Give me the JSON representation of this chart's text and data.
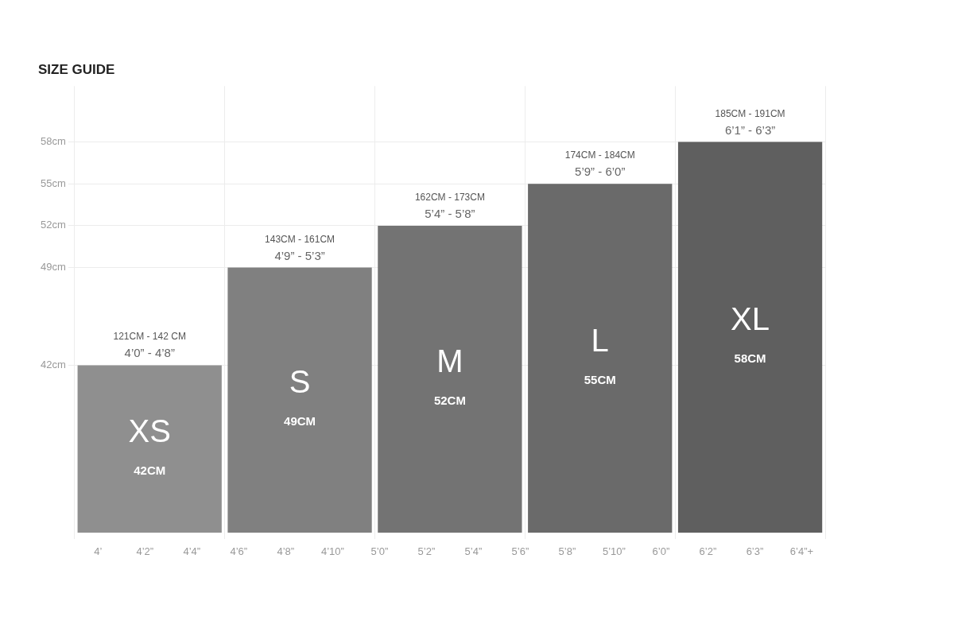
{
  "chart_data": {
    "type": "bar",
    "title": "SIZE GUIDE",
    "categories": [
      "XS",
      "S",
      "M",
      "L",
      "XL"
    ],
    "values": [
      42,
      49,
      52,
      55,
      58
    ],
    "colors": [
      "#8f8f8f",
      "#808080",
      "#737373",
      "#6a6a6a",
      "#5f5f5f"
    ],
    "value_labels": [
      "42CM",
      "49CM",
      "52CM",
      "55CM",
      "58CM"
    ],
    "ylim": [
      30,
      62
    ],
    "yticks": [
      {
        "value": 42,
        "label": "42cm"
      },
      {
        "value": 49,
        "label": "49cm"
      },
      {
        "value": 52,
        "label": "52cm"
      },
      {
        "value": 55,
        "label": "55cm"
      },
      {
        "value": 58,
        "label": "58cm"
      }
    ],
    "grid": true,
    "legend": false,
    "annotations": [
      "121CM - 142 CM",
      "4’0” - 4’8”",
      "143CM - 161CM",
      "4’9” - 5’3”",
      "162CM - 173CM",
      "5’4” - 5’8”",
      "174CM - 184CM",
      "5’9” - 6’0”",
      "185CM - 191CM",
      "6’1” - 6’3”",
      "4’",
      "4’2”",
      "4’4”",
      "4’6”",
      "4’8”",
      "4’10”",
      "5’0”",
      "5’2”",
      "5’4”",
      "5’6”",
      "5’8”",
      "5’10”",
      "6’0”",
      "6’2”",
      "6’3”",
      "6’4”+"
    ]
  }
}
